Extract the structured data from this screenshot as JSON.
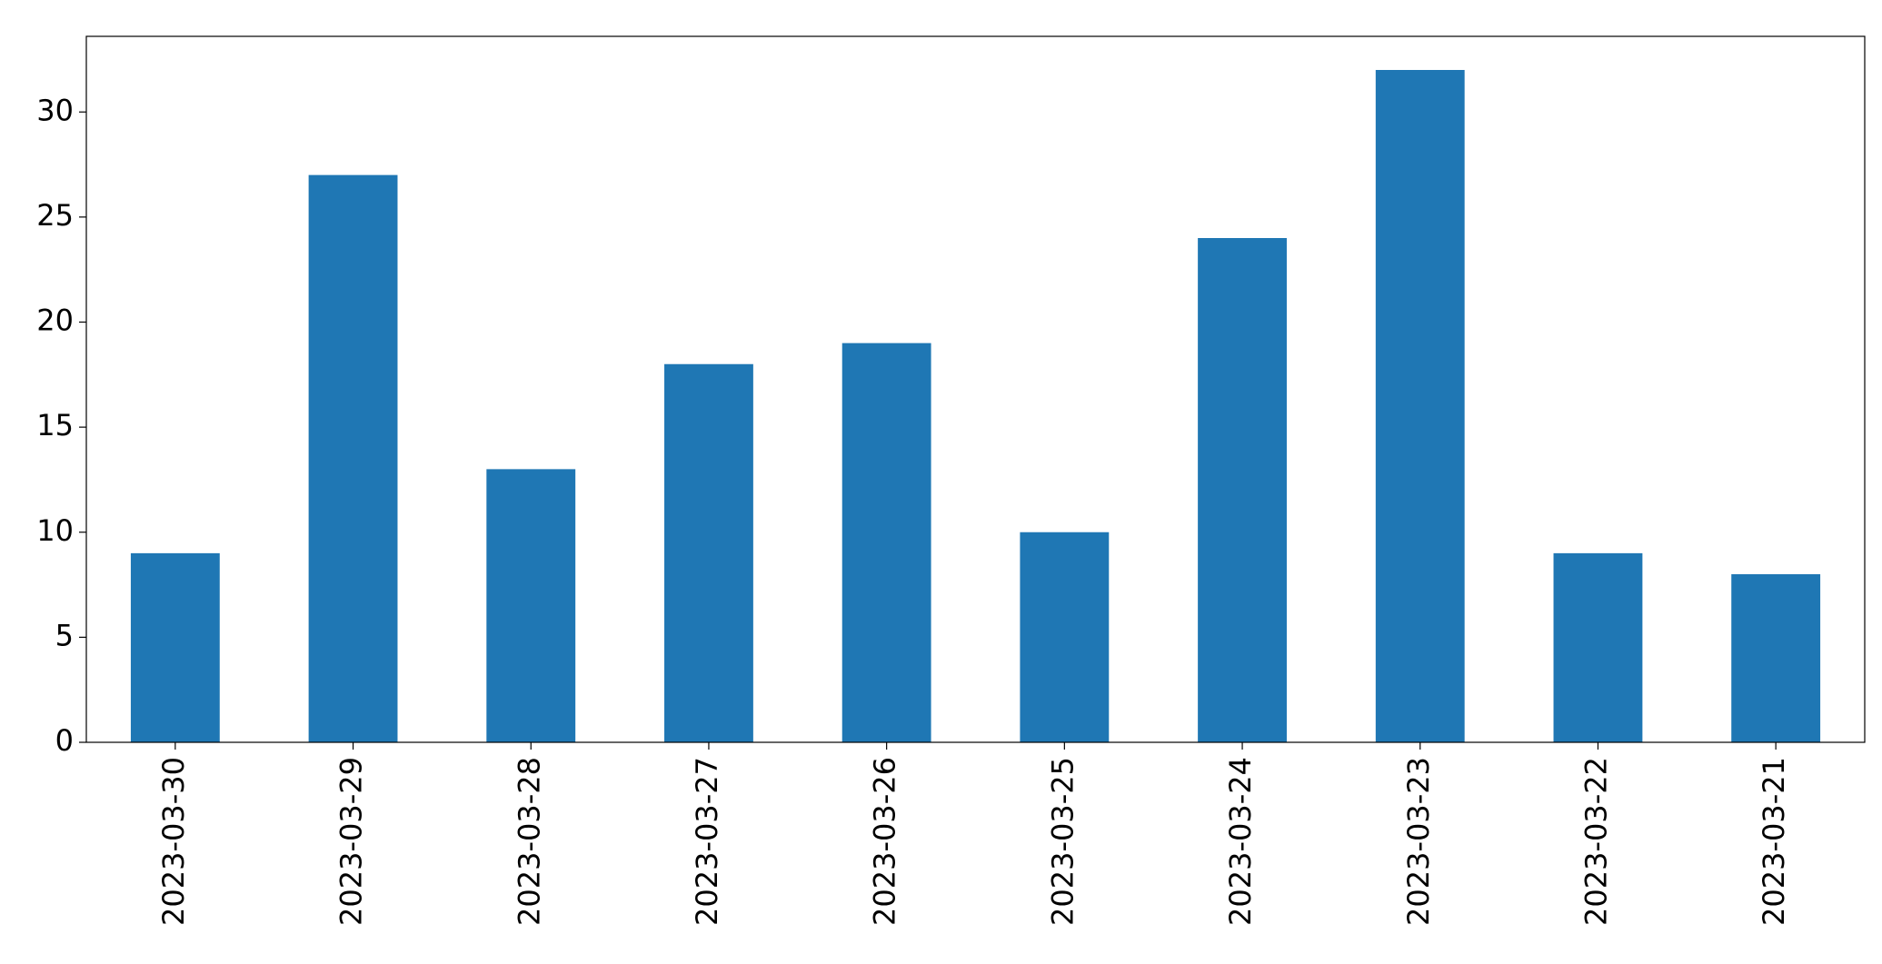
{
  "chart_data": {
    "type": "bar",
    "categories": [
      "2023-03-30",
      "2023-03-29",
      "2023-03-28",
      "2023-03-27",
      "2023-03-26",
      "2023-03-25",
      "2023-03-24",
      "2023-03-23",
      "2023-03-22",
      "2023-03-21"
    ],
    "values": [
      9,
      27,
      13,
      18,
      19,
      10,
      24,
      32,
      9,
      8
    ],
    "color": "#1f77b4",
    "ylim": [
      0,
      33.6
    ],
    "yticks": [
      0,
      5,
      10,
      15,
      20,
      25,
      30
    ],
    "grid": false
  }
}
